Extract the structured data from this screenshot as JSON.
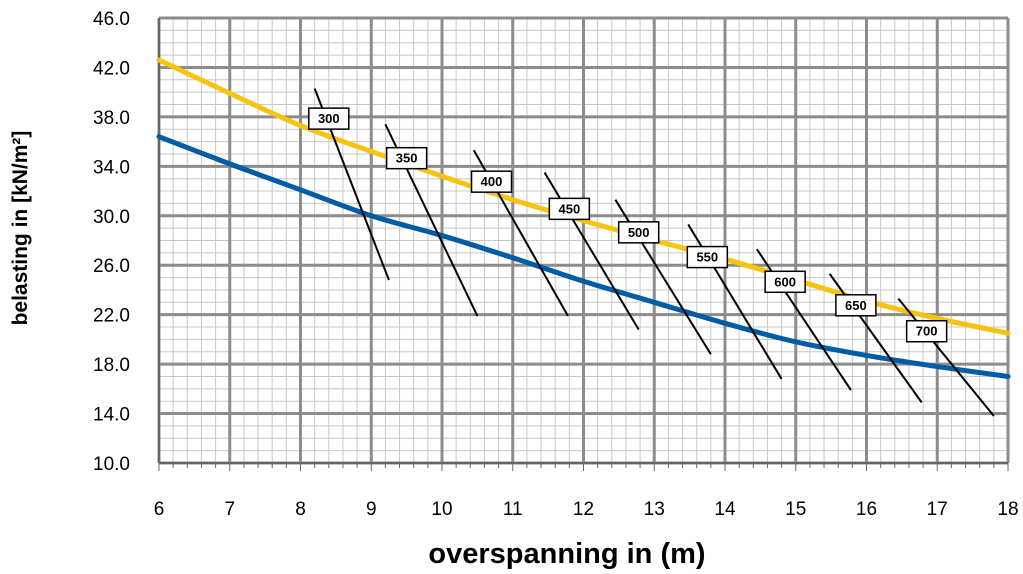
{
  "chart_data": {
    "type": "line",
    "title": "",
    "xlabel": "overspanning in (m)",
    "ylabel": "belasting in [kN/m²]",
    "xlim": [
      6,
      18
    ],
    "ylim": [
      10,
      46
    ],
    "x_ticks": [
      "6",
      "7",
      "8",
      "9",
      "10",
      "11",
      "12",
      "13",
      "14",
      "15",
      "16",
      "17",
      "18"
    ],
    "y_ticks": [
      "10.0",
      "14.0",
      "18.0",
      "22.0",
      "26.0",
      "30.0",
      "34.0",
      "38.0",
      "42.0",
      "46.0"
    ],
    "grid": true,
    "legend": "none",
    "series": [
      {
        "color": "#F6C40F",
        "x": [
          6,
          7,
          8,
          9,
          10,
          11,
          12,
          13,
          14,
          15,
          16,
          17,
          18
        ],
        "values": [
          42.6,
          39.9,
          37.3,
          35.2,
          33.2,
          31.3,
          29.6,
          28.0,
          26.5,
          24.8,
          23.1,
          21.7,
          20.5
        ]
      },
      {
        "color": "#005CA5",
        "x": [
          6,
          7,
          8,
          9,
          10,
          11,
          12,
          13,
          14,
          15,
          16,
          17,
          18
        ],
        "values": [
          36.4,
          34.2,
          32.1,
          30.0,
          28.4,
          26.6,
          24.7,
          23.0,
          21.3,
          19.8,
          18.7,
          17.8,
          17.0
        ]
      }
    ],
    "annotations": [
      {
        "label": "300",
        "x1": 8.2,
        "y1": 40.3,
        "x2": 9.25,
        "y2": 24.8,
        "label_x": 8.4,
        "label_y": 37.9
      },
      {
        "label": "350",
        "x1": 9.2,
        "y1": 37.4,
        "x2": 10.5,
        "y2": 21.9,
        "label_x": 9.5,
        "label_y": 34.7
      },
      {
        "label": "400",
        "x1": 10.45,
        "y1": 35.3,
        "x2": 11.78,
        "y2": 21.9,
        "label_x": 10.7,
        "label_y": 32.8
      },
      {
        "label": "450",
        "x1": 11.45,
        "y1": 33.5,
        "x2": 12.78,
        "y2": 20.8,
        "label_x": 11.8,
        "label_y": 30.6
      },
      {
        "label": "500",
        "x1": 12.45,
        "y1": 31.3,
        "x2": 13.8,
        "y2": 18.8,
        "label_x": 12.78,
        "label_y": 28.7
      },
      {
        "label": "550",
        "x1": 13.48,
        "y1": 29.3,
        "x2": 14.8,
        "y2": 16.8,
        "label_x": 13.75,
        "label_y": 26.7
      },
      {
        "label": "600",
        "x1": 14.45,
        "y1": 27.3,
        "x2": 15.78,
        "y2": 15.9,
        "label_x": 14.85,
        "label_y": 24.7
      },
      {
        "label": "650",
        "x1": 15.48,
        "y1": 25.3,
        "x2": 16.78,
        "y2": 14.9,
        "label_x": 15.85,
        "label_y": 22.8
      },
      {
        "label": "700",
        "x1": 16.45,
        "y1": 23.3,
        "x2": 17.8,
        "y2": 13.8,
        "label_x": 16.85,
        "label_y": 20.7
      }
    ]
  }
}
